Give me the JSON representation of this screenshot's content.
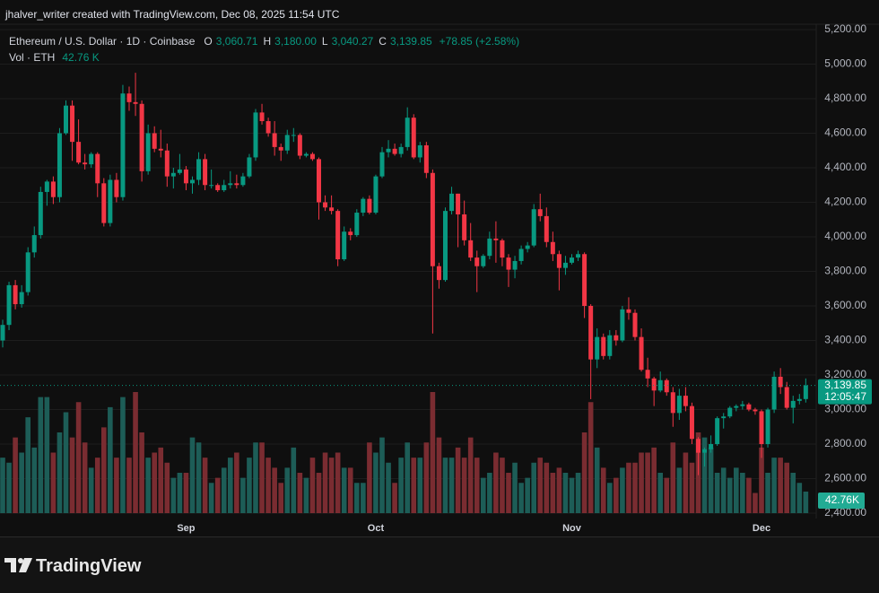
{
  "attribution": "jhalver_writer created with TradingView.com, Dec 08, 2025 11:54 UTC",
  "brand": "TradingView",
  "chart_data": {
    "type": "candlestick",
    "title": "Ethereum / U.S. Dollar · 1D · Coinbase",
    "ohlc_legend": {
      "open_label": "O",
      "open": "3,060.71",
      "high_label": "H",
      "high": "3,180.00",
      "low_label": "L",
      "low": "3,040.27",
      "close_label": "C",
      "close": "3,139.85",
      "change": "+78.85 (+2.58%)"
    },
    "countdown": "12:05:47",
    "up_color": "#089981",
    "down_color": "#f23645",
    "volume_up_color": "#1d5d57",
    "volume_down_color": "#7a2c31",
    "categories": [
      null,
      null,
      null,
      null,
      null,
      null,
      null,
      null,
      null,
      null,
      null,
      null,
      null,
      null,
      null,
      null,
      null,
      null,
      null,
      null,
      null,
      null,
      null,
      null,
      null,
      null,
      null,
      null,
      null,
      "Sep",
      null,
      null,
      null,
      null,
      null,
      null,
      null,
      null,
      null,
      null,
      null,
      null,
      null,
      null,
      null,
      null,
      null,
      null,
      null,
      null,
      null,
      null,
      null,
      null,
      null,
      null,
      null,
      null,
      null,
      "Oct",
      null,
      null,
      null,
      null,
      null,
      null,
      null,
      null,
      null,
      null,
      null,
      null,
      null,
      null,
      null,
      null,
      null,
      null,
      null,
      null,
      null,
      null,
      null,
      null,
      null,
      null,
      null,
      null,
      null,
      null,
      "Nov",
      null,
      null,
      null,
      null,
      null,
      null,
      null,
      null,
      null,
      null,
      null,
      null,
      null,
      null,
      null,
      null,
      null,
      null,
      null,
      null,
      null,
      null,
      null,
      null,
      null,
      null,
      null,
      null,
      null,
      "Dec",
      null,
      null,
      null,
      null,
      null,
      null,
      null
    ],
    "open": [
      3400,
      3490,
      3720,
      3610,
      3680,
      3910,
      4010,
      4260,
      4320,
      4230,
      4600,
      4760,
      4550,
      4430,
      4420,
      4480,
      4310,
      4080,
      4330,
      4230,
      4830,
      4780,
      4770,
      4380,
      4600,
      4510,
      4500,
      4350,
      4370,
      4390,
      4310,
      4330,
      4450,
      4300,
      4300,
      4270,
      4300,
      4310,
      4300,
      4350,
      4460,
      4720,
      4670,
      4600,
      4520,
      4500,
      4590,
      4590,
      4470,
      4480,
      4450,
      4200,
      4170,
      4150,
      3870,
      4030,
      4010,
      4140,
      4220,
      4140,
      4350,
      4490,
      4510,
      4480,
      4520,
      4690,
      4460,
      4530,
      4370,
      3830,
      3750,
      4150,
      4250,
      4130,
      3980,
      3880,
      3830,
      3890,
      3990,
      3980,
      3880,
      3810,
      3860,
      3930,
      3950,
      4160,
      4120,
      3970,
      3900,
      3820,
      3850,
      3880,
      3900,
      3600,
      3290,
      3420,
      3310,
      3430,
      3400,
      3580,
      3560,
      3420,
      3230,
      3180,
      3110,
      3170,
      3100,
      2980,
      3080,
      3020,
      2830,
      2750,
      2770,
      2800,
      2950,
      2960,
      3010,
      3020,
      3030,
      3000,
      2990,
      2800,
      3000,
      3190,
      3130,
      3010,
      3050,
      3060.71
    ],
    "high": [
      3520,
      3740,
      3750,
      3720,
      3940,
      4060,
      4290,
      4330,
      4350,
      4630,
      4790,
      4790,
      4680,
      4480,
      4490,
      4490,
      4340,
      4360,
      4370,
      4880,
      4870,
      4950,
      4790,
      4650,
      4640,
      4620,
      4540,
      4400,
      4480,
      4410,
      4350,
      4490,
      4480,
      4390,
      4310,
      4330,
      4380,
      4360,
      4370,
      4480,
      4740,
      4770,
      4690,
      4670,
      4540,
      4620,
      4630,
      4600,
      4490,
      4490,
      4460,
      4240,
      4240,
      4160,
      4060,
      4050,
      4160,
      4230,
      4240,
      4360,
      4520,
      4560,
      4540,
      4540,
      4750,
      4710,
      4550,
      4550,
      4390,
      3850,
      4170,
      4290,
      4250,
      4210,
      4080,
      3920,
      3900,
      4030,
      4090,
      3990,
      3900,
      3890,
      3950,
      3970,
      4190,
      4250,
      4170,
      4030,
      3920,
      3890,
      3900,
      3920,
      3910,
      3610,
      3470,
      3440,
      3460,
      3460,
      3600,
      3650,
      3580,
      3470,
      3300,
      3190,
      3220,
      3180,
      3130,
      3120,
      3130,
      3040,
      2840,
      2780,
      2850,
      2960,
      2980,
      3020,
      3030,
      3050,
      3040,
      3010,
      3000,
      3010,
      3220,
      3240,
      3160,
      3080,
      3090,
      3180
    ],
    "low": [
      3360,
      3460,
      3580,
      3590,
      3660,
      3880,
      3990,
      4180,
      4190,
      4200,
      4590,
      4440,
      4420,
      4390,
      4400,
      4230,
      4060,
      4060,
      4200,
      4210,
      4730,
      4700,
      4320,
      4360,
      4490,
      4460,
      4290,
      4280,
      4360,
      4270,
      4250,
      4300,
      4270,
      4280,
      4260,
      4260,
      4280,
      4280,
      4290,
      4340,
      4440,
      4650,
      4580,
      4470,
      4440,
      4480,
      4550,
      4450,
      4460,
      4440,
      4100,
      4150,
      4130,
      3830,
      3860,
      3980,
      4000,
      4120,
      4130,
      4130,
      4340,
      4460,
      4470,
      4460,
      4500,
      4450,
      4430,
      4340,
      3440,
      3700,
      3740,
      4130,
      3940,
      3950,
      3860,
      3680,
      3820,
      3870,
      3850,
      3830,
      3710,
      3760,
      3840,
      3910,
      3940,
      4090,
      3940,
      3860,
      3690,
      3780,
      3840,
      3860,
      3530,
      3060,
      3240,
      3290,
      3290,
      3370,
      3390,
      3520,
      3400,
      3220,
      3130,
      3020,
      3100,
      3080,
      2900,
      2940,
      2990,
      2800,
      2620,
      2670,
      2750,
      2790,
      2890,
      2950,
      2990,
      3000,
      2990,
      2970,
      2720,
      2780,
      2980,
      3090,
      3000,
      2920,
      3030,
      3040.27
    ],
    "close": [
      3490,
      3720,
      3610,
      3680,
      3910,
      4010,
      4260,
      4320,
      4230,
      4600,
      4760,
      4550,
      4430,
      4420,
      4480,
      4310,
      4080,
      4330,
      4230,
      4830,
      4780,
      4770,
      4380,
      4600,
      4510,
      4500,
      4350,
      4370,
      4390,
      4310,
      4330,
      4450,
      4300,
      4300,
      4270,
      4300,
      4310,
      4300,
      4350,
      4460,
      4720,
      4670,
      4600,
      4520,
      4500,
      4590,
      4590,
      4470,
      4480,
      4450,
      4200,
      4170,
      4150,
      3870,
      4030,
      4010,
      4140,
      4220,
      4140,
      4350,
      4490,
      4510,
      4480,
      4520,
      4690,
      4460,
      4530,
      4370,
      3830,
      3750,
      4150,
      4250,
      4130,
      3980,
      3880,
      3830,
      3890,
      3990,
      3980,
      3880,
      3810,
      3860,
      3930,
      3950,
      4160,
      4120,
      3970,
      3900,
      3820,
      3850,
      3880,
      3900,
      3600,
      3290,
      3420,
      3310,
      3430,
      3400,
      3580,
      3560,
      3420,
      3230,
      3180,
      3110,
      3170,
      3100,
      2980,
      3080,
      3020,
      2830,
      2750,
      2770,
      2800,
      2950,
      2960,
      3010,
      3020,
      3030,
      3000,
      2990,
      2800,
      3000,
      3190,
      3130,
      3010,
      3050,
      3061,
      3139.85
    ],
    "volume": {
      "name": "Vol · ETH",
      "legend_value": "42.76 K",
      "tag_value": "42.76K",
      "values": [
        110,
        100,
        150,
        120,
        190,
        130,
        230,
        230,
        120,
        160,
        200,
        150,
        220,
        140,
        90,
        110,
        170,
        210,
        110,
        230,
        110,
        240,
        160,
        110,
        120,
        130,
        100,
        70,
        80,
        80,
        150,
        140,
        110,
        60,
        70,
        90,
        110,
        120,
        70,
        110,
        140,
        140,
        110,
        90,
        60,
        90,
        130,
        80,
        70,
        110,
        80,
        120,
        110,
        120,
        90,
        90,
        60,
        60,
        140,
        120,
        150,
        100,
        60,
        110,
        140,
        110,
        110,
        140,
        240,
        150,
        110,
        110,
        130,
        110,
        150,
        110,
        70,
        80,
        120,
        110,
        80,
        100,
        60,
        70,
        100,
        110,
        100,
        80,
        90,
        80,
        70,
        80,
        160,
        220,
        130,
        90,
        60,
        70,
        90,
        100,
        100,
        120,
        120,
        130,
        80,
        70,
        140,
        90,
        120,
        100,
        160,
        150,
        130,
        80,
        90,
        70,
        90,
        80,
        70,
        40,
        130,
        80,
        110,
        110,
        100,
        80,
        60,
        42.76
      ]
    },
    "ylim": [
      2400,
      5200
    ],
    "yticks": [
      {
        "value": 2400,
        "label": "2,400.00"
      },
      {
        "value": 2600,
        "label": "2,600.00"
      },
      {
        "value": 2800,
        "label": "2,800.00"
      },
      {
        "value": 3000,
        "label": "3,000.00"
      },
      {
        "value": 3200,
        "label": "3,200.00"
      },
      {
        "value": 3400,
        "label": "3,400.00"
      },
      {
        "value": 3600,
        "label": "3,600.00"
      },
      {
        "value": 3800,
        "label": "3,800.00"
      },
      {
        "value": 4000,
        "label": "4,000.00"
      },
      {
        "value": 4200,
        "label": "4,200.00"
      },
      {
        "value": 4400,
        "label": "4,400.00"
      },
      {
        "value": 4600,
        "label": "4,600.00"
      },
      {
        "value": 4800,
        "label": "4,800.00"
      },
      {
        "value": 5000,
        "label": "5,000.00"
      },
      {
        "value": 5200,
        "label": "5,200.00"
      }
    ],
    "grid": true
  }
}
